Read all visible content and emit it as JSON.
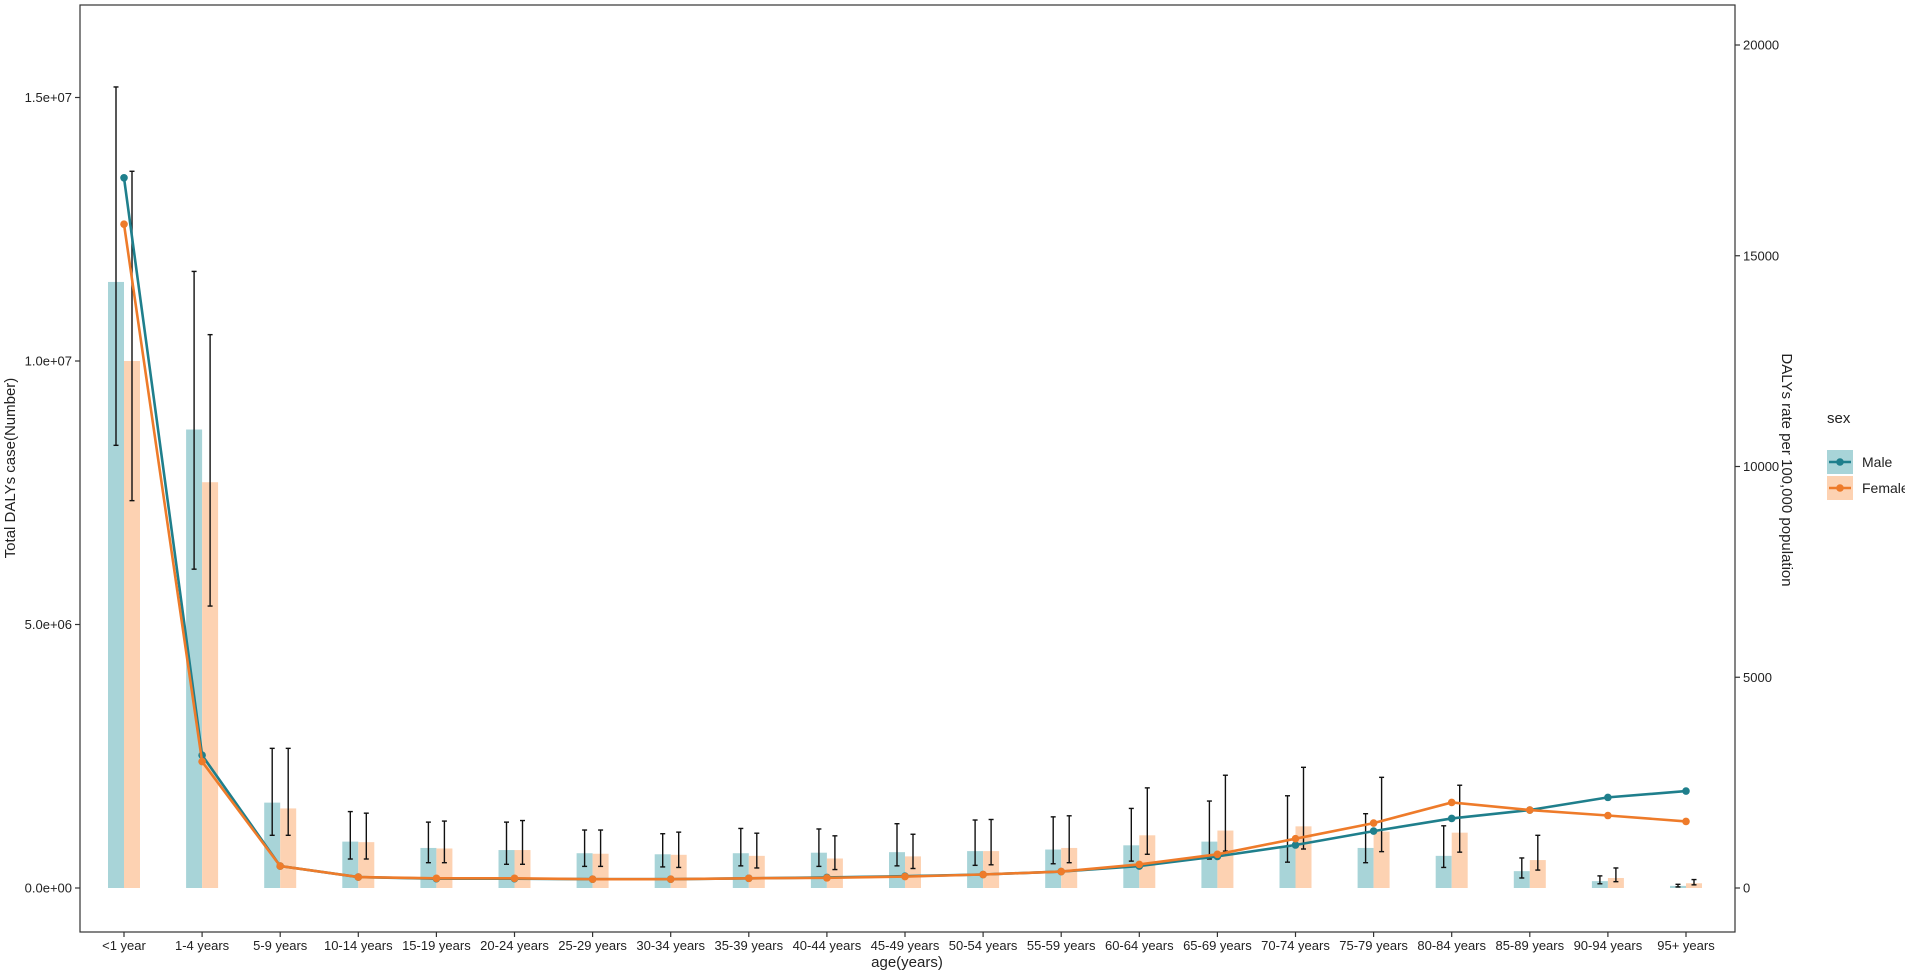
{
  "chart_data": {
    "type": "bar",
    "categories": [
      "<1 year",
      "1-4 years",
      "5-9 years",
      "10-14 years",
      "15-19 years",
      "20-24 years",
      "25-29 years",
      "30-34 years",
      "35-39 years",
      "40-44 years",
      "45-49 years",
      "50-54 years",
      "55-59 years",
      "60-64 years",
      "65-69 years",
      "70-74 years",
      "75-79 years",
      "80-84 years",
      "85-89 years",
      "90-94 years",
      "95+ years"
    ],
    "xlabel": "age(years)",
    "ylabel": "Total DALYs case(Number)",
    "y2label": "DALYs rate per 100,000 population",
    "ylim": [
      0,
      16500000
    ],
    "y2lim": [
      0,
      20642
    ],
    "yticks": [
      {
        "v": 0,
        "label": "0.0e+00"
      },
      {
        "v": 5000000,
        "label": "5.0e+06"
      },
      {
        "v": 10000000,
        "label": "1.0e+07"
      },
      {
        "v": 15000000,
        "label": "1.5e+07"
      }
    ],
    "y2ticks": [
      {
        "v": 0,
        "label": "0"
      },
      {
        "v": 5000,
        "label": "5000"
      },
      {
        "v": 10000,
        "label": "10000"
      },
      {
        "v": 15000,
        "label": "15000"
      },
      {
        "v": 20000,
        "label": "20000"
      }
    ],
    "grid": false,
    "legend": {
      "title": "sex",
      "position": "right"
    },
    "series": [
      {
        "name": "Male",
        "bar_color": "#a8d4d8",
        "line_color": "#1f7f8c",
        "bars": [
          11500000,
          8700000,
          1620000,
          880000,
          760000,
          720000,
          660000,
          640000,
          660000,
          670000,
          680000,
          700000,
          730000,
          810000,
          880000,
          780000,
          760000,
          610000,
          320000,
          130000,
          40000
        ],
        "bars_upper": [
          15200000,
          11700000,
          2650000,
          1450000,
          1250000,
          1250000,
          1100000,
          1030000,
          1130000,
          1120000,
          1220000,
          1290000,
          1350000,
          1510000,
          1650000,
          1750000,
          1410000,
          1180000,
          570000,
          230000,
          70000
        ],
        "bars_lower": [
          8400000,
          6050000,
          1000000,
          550000,
          480000,
          450000,
          410000,
          400000,
          420000,
          410000,
          420000,
          430000,
          460000,
          510000,
          550000,
          490000,
          480000,
          390000,
          190000,
          80000,
          20000
        ],
        "rate": [
          16850,
          3150,
          520,
          260,
          220,
          220,
          210,
          210,
          230,
          250,
          280,
          320,
          390,
          520,
          750,
          1020,
          1350,
          1650,
          1850,
          2150,
          2300
        ]
      },
      {
        "name": "Female",
        "bar_color": "#fdd2b2",
        "line_color": "#ee7b2a",
        "bars": [
          10000000,
          7700000,
          1510000,
          870000,
          750000,
          720000,
          650000,
          630000,
          610000,
          560000,
          600000,
          700000,
          760000,
          1000000,
          1090000,
          1170000,
          1070000,
          1050000,
          530000,
          190000,
          90000
        ],
        "bars_upper": [
          13600000,
          10500000,
          2650000,
          1420000,
          1270000,
          1280000,
          1100000,
          1060000,
          1040000,
          990000,
          1020000,
          1300000,
          1370000,
          1900000,
          2140000,
          2290000,
          2100000,
          1950000,
          1000000,
          380000,
          160000
        ],
        "bars_lower": [
          7350000,
          5350000,
          1000000,
          550000,
          480000,
          450000,
          410000,
          390000,
          380000,
          350000,
          370000,
          440000,
          480000,
          640000,
          700000,
          740000,
          690000,
          680000,
          340000,
          120000,
          60000
        ],
        "rate": [
          15750,
          3000,
          520,
          260,
          230,
          230,
          210,
          210,
          230,
          240,
          270,
          320,
          390,
          560,
          800,
          1170,
          1540,
          2030,
          1850,
          1720,
          1580
        ]
      }
    ]
  }
}
